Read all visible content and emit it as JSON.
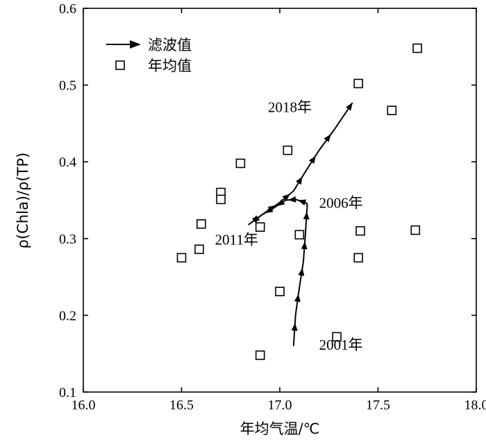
{
  "chart_data": {
    "type": "scatter",
    "xlabel": "年均气温/℃",
    "ylabel": "ρ(Chla)/ρ(TP)",
    "xlim": [
      16.0,
      18.0
    ],
    "ylim": [
      0.1,
      0.6
    ],
    "x_ticks": [
      16.0,
      16.5,
      17.0,
      17.5,
      18.0
    ],
    "x_tick_labels": [
      "16.0",
      "16.5",
      "17.0",
      "17.5",
      "18.0"
    ],
    "y_ticks": [
      0.1,
      0.2,
      0.3,
      0.4,
      0.5,
      0.6
    ],
    "y_tick_labels": [
      "0.1",
      "0.2",
      "0.3",
      "0.4",
      "0.5",
      "0.6"
    ],
    "grid": false,
    "legend": {
      "position": "top-left",
      "entries": [
        {
          "label": "滤波值",
          "marker": "arrow-line"
        },
        {
          "label": "年均值",
          "marker": "open-square"
        }
      ]
    },
    "series": [
      {
        "name": "年均值",
        "kind": "scatter",
        "points": [
          {
            "x": 16.5,
            "y": 0.275
          },
          {
            "x": 16.59,
            "y": 0.286
          },
          {
            "x": 16.6,
            "y": 0.319
          },
          {
            "x": 16.7,
            "y": 0.36
          },
          {
            "x": 16.7,
            "y": 0.351
          },
          {
            "x": 16.8,
            "y": 0.398
          },
          {
            "x": 16.9,
            "y": 0.148
          },
          {
            "x": 16.9,
            "y": 0.315
          },
          {
            "x": 17.0,
            "y": 0.231
          },
          {
            "x": 17.04,
            "y": 0.415
          },
          {
            "x": 17.1,
            "y": 0.305
          },
          {
            "x": 17.29,
            "y": 0.172
          },
          {
            "x": 17.4,
            "y": 0.502
          },
          {
            "x": 17.4,
            "y": 0.275
          },
          {
            "x": 17.41,
            "y": 0.31
          },
          {
            "x": 17.57,
            "y": 0.467
          },
          {
            "x": 17.69,
            "y": 0.311
          },
          {
            "x": 17.7,
            "y": 0.548
          }
        ]
      },
      {
        "name": "滤波值",
        "kind": "arrow-path",
        "points": [
          {
            "x": 17.07,
            "y": 0.16
          },
          {
            "x": 17.08,
            "y": 0.2
          },
          {
            "x": 17.1,
            "y": 0.237
          },
          {
            "x": 17.12,
            "y": 0.27
          },
          {
            "x": 17.13,
            "y": 0.305
          },
          {
            "x": 17.14,
            "y": 0.345
          },
          {
            "x": 17.13,
            "y": 0.347
          },
          {
            "x": 17.08,
            "y": 0.351
          },
          {
            "x": 17.03,
            "y": 0.35
          },
          {
            "x": 16.97,
            "y": 0.34
          },
          {
            "x": 16.91,
            "y": 0.331
          },
          {
            "x": 16.84,
            "y": 0.318
          },
          {
            "x": 16.92,
            "y": 0.333
          },
          {
            "x": 17.0,
            "y": 0.347
          },
          {
            "x": 17.07,
            "y": 0.362
          },
          {
            "x": 17.13,
            "y": 0.387
          },
          {
            "x": 17.2,
            "y": 0.415
          },
          {
            "x": 17.28,
            "y": 0.443
          },
          {
            "x": 17.37,
            "y": 0.477
          }
        ]
      }
    ],
    "annotations": [
      {
        "text": "2001年",
        "x": 17.2,
        "y": 0.155
      },
      {
        "text": "2006年",
        "x": 17.2,
        "y": 0.34
      },
      {
        "text": "2011年",
        "x": 16.67,
        "y": 0.292
      },
      {
        "text": "2018年",
        "x": 16.94,
        "y": 0.465
      }
    ]
  }
}
